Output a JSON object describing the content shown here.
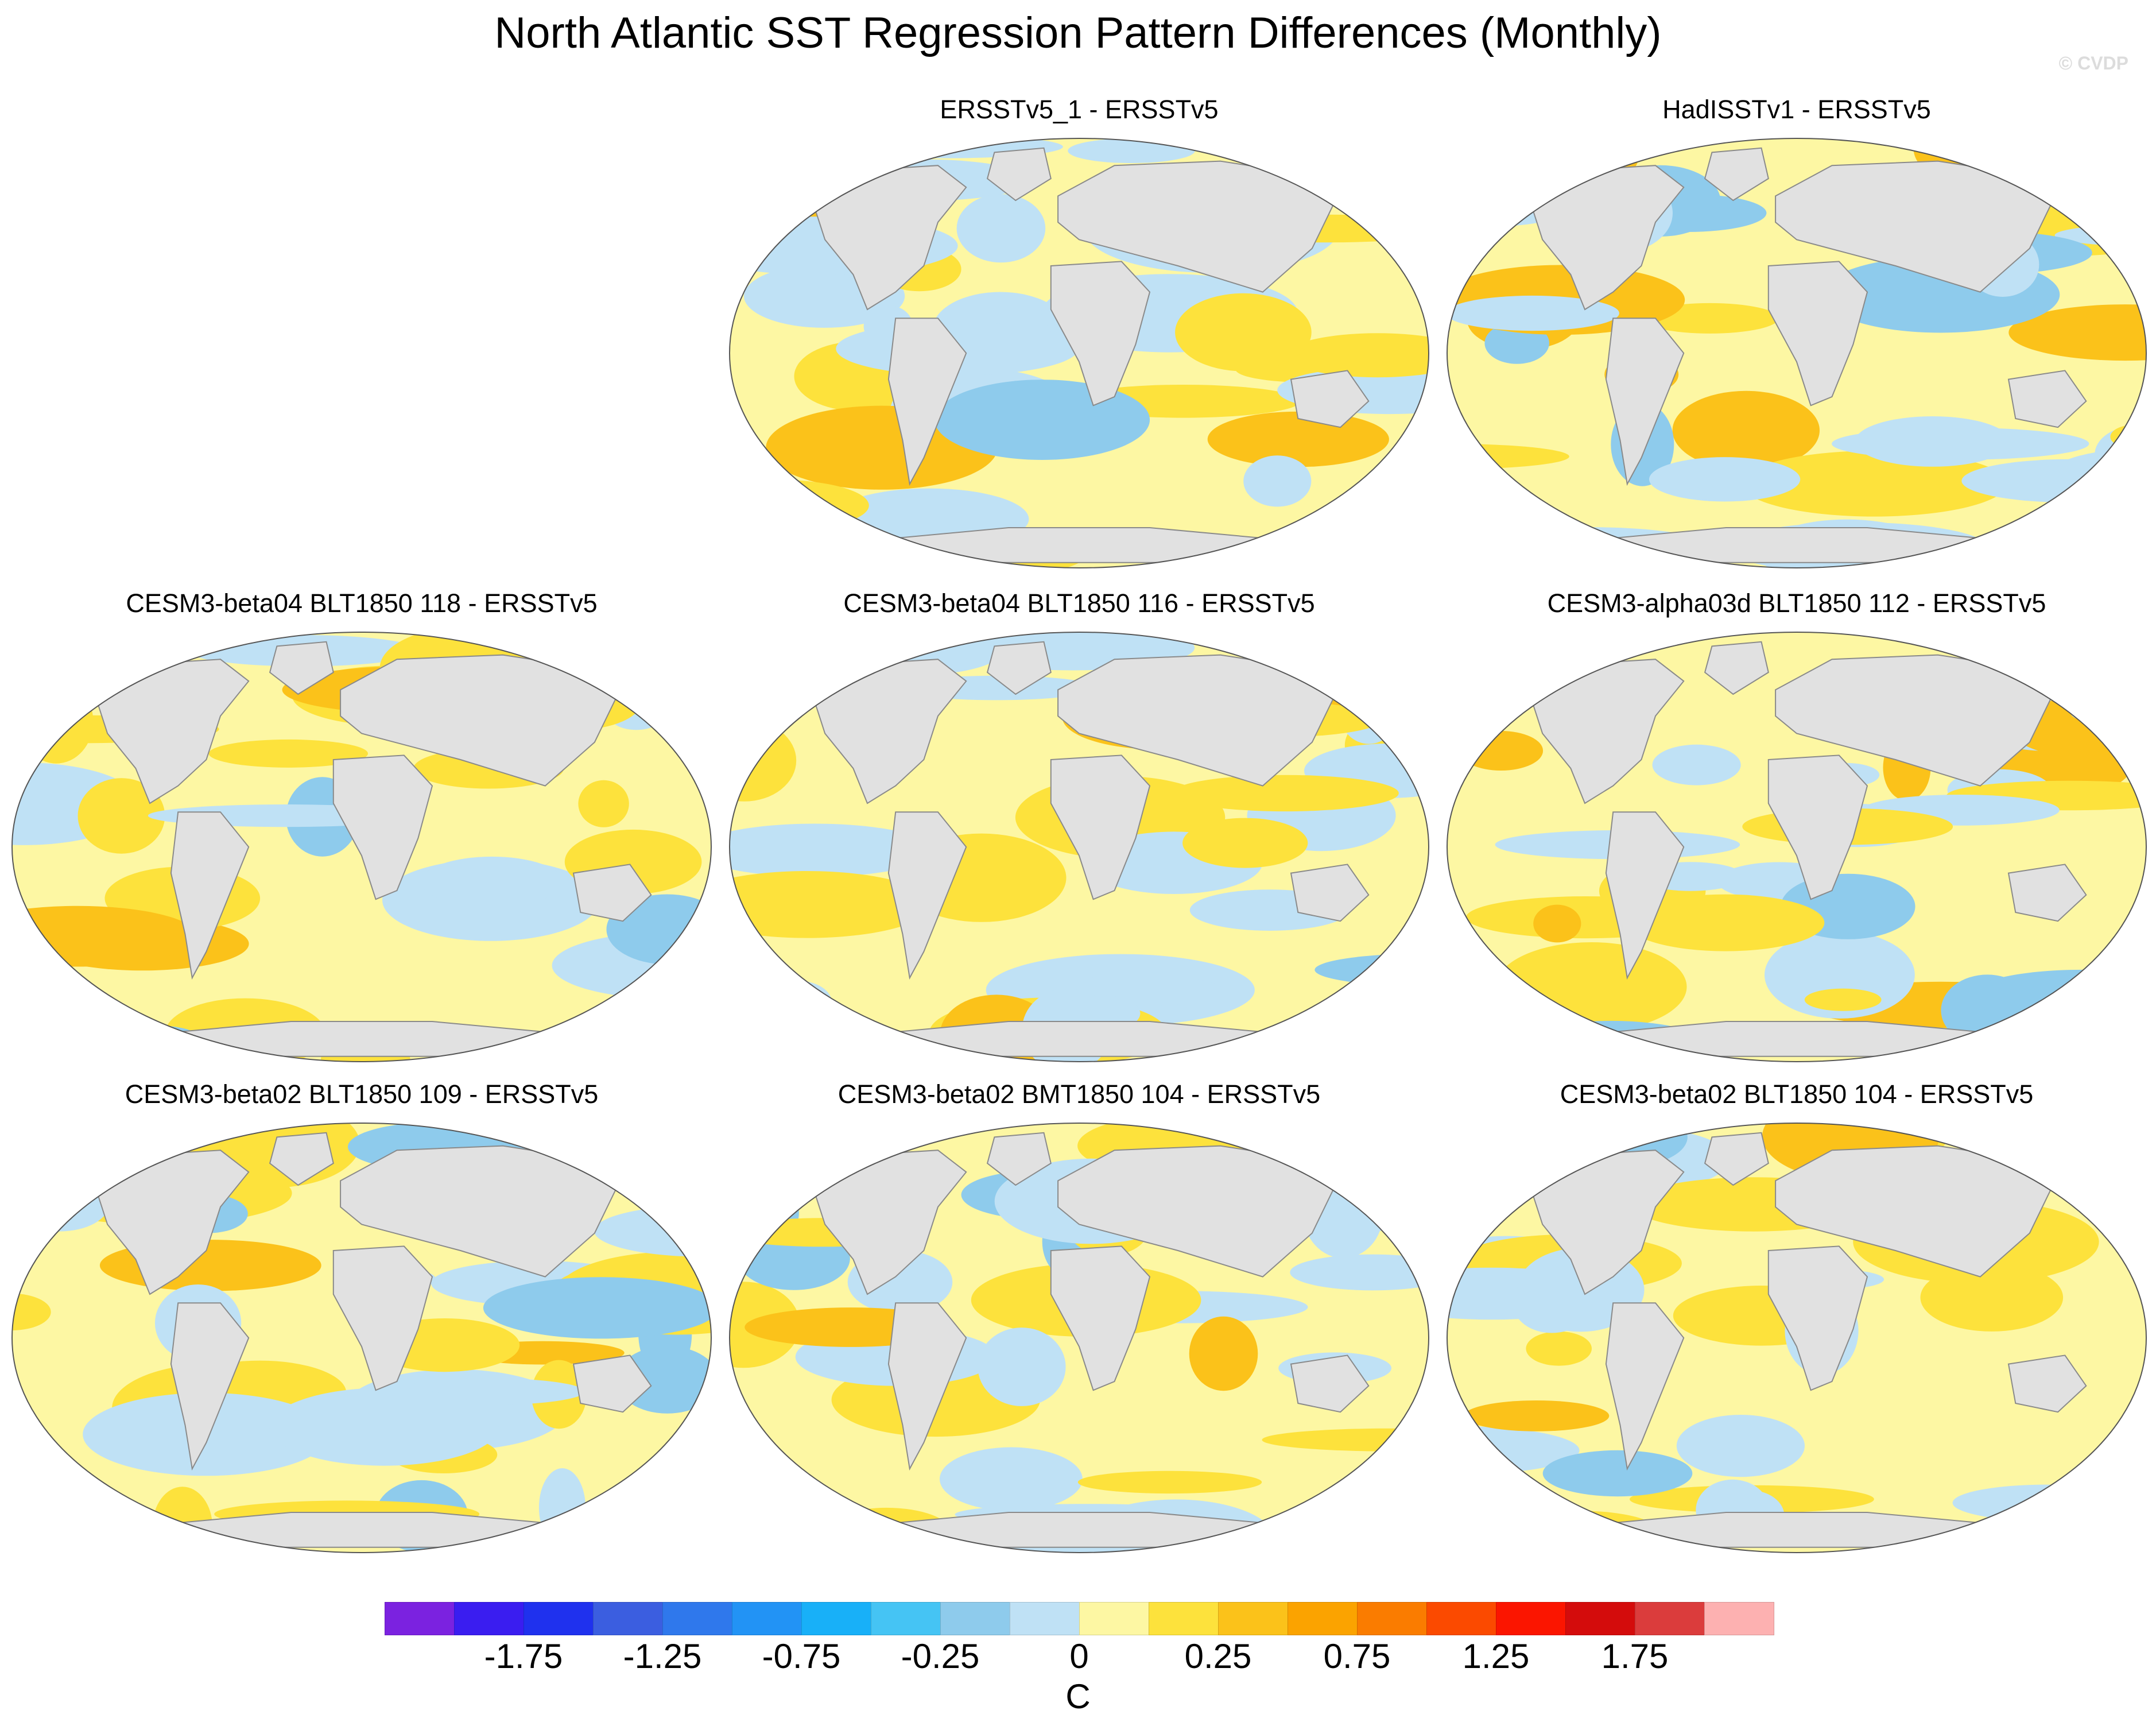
{
  "title": "North Atlantic SST Regression Pattern Differences (Monthly)",
  "watermark": "© CVDP",
  "chart_data": {
    "type": "heatmap",
    "title": "North Atlantic SST Regression Pattern Differences (Monthly)",
    "panels": [
      {
        "title": "ERSSTv5_1 - ERSSTv5"
      },
      {
        "title": "HadISSTv1 - ERSSTv5"
      },
      {
        "title": "CESM3-beta04 BLT1850 118 - ERSSTv5"
      },
      {
        "title": "CESM3-beta04 BLT1850 116 - ERSSTv5"
      },
      {
        "title": "CESM3-alpha03d BLT1850 112 - ERSSTv5"
      },
      {
        "title": "CESM3-beta02 BLT1850 109 - ERSSTv5"
      },
      {
        "title": "CESM3-beta02 BMT1850 104 - ERSSTv5"
      },
      {
        "title": "CESM3-beta02 BLT1850 104 - ERSSTv5"
      }
    ],
    "colorbar": {
      "levels": [
        -2.0,
        -1.75,
        -1.5,
        -1.25,
        -1.0,
        -0.75,
        -0.5,
        -0.25,
        0,
        0.25,
        0.5,
        0.75,
        1.0,
        1.25,
        1.5,
        1.75,
        2.0
      ],
      "colors": [
        "#7b22e0",
        "#3a1df0",
        "#1f31ee",
        "#3b5ee0",
        "#2f78ec",
        "#2293f5",
        "#18b0f8",
        "#45c4f4",
        "#8ecbec",
        "#bfe1f5",
        "#fdf7a3",
        "#fde23c",
        "#fbc21a",
        "#fba300",
        "#fa7c00",
        "#fb4a00",
        "#fb1500",
        "#d40c0c",
        "#db3c3c",
        "#fdb1b1"
      ],
      "tick_labels": [
        "-1.75",
        "-1.25",
        "-0.75",
        "-0.25",
        "0",
        "0.25",
        "0.75",
        "1.25",
        "1.75"
      ],
      "label": "C"
    },
    "land_color": "#e1e1e1"
  }
}
